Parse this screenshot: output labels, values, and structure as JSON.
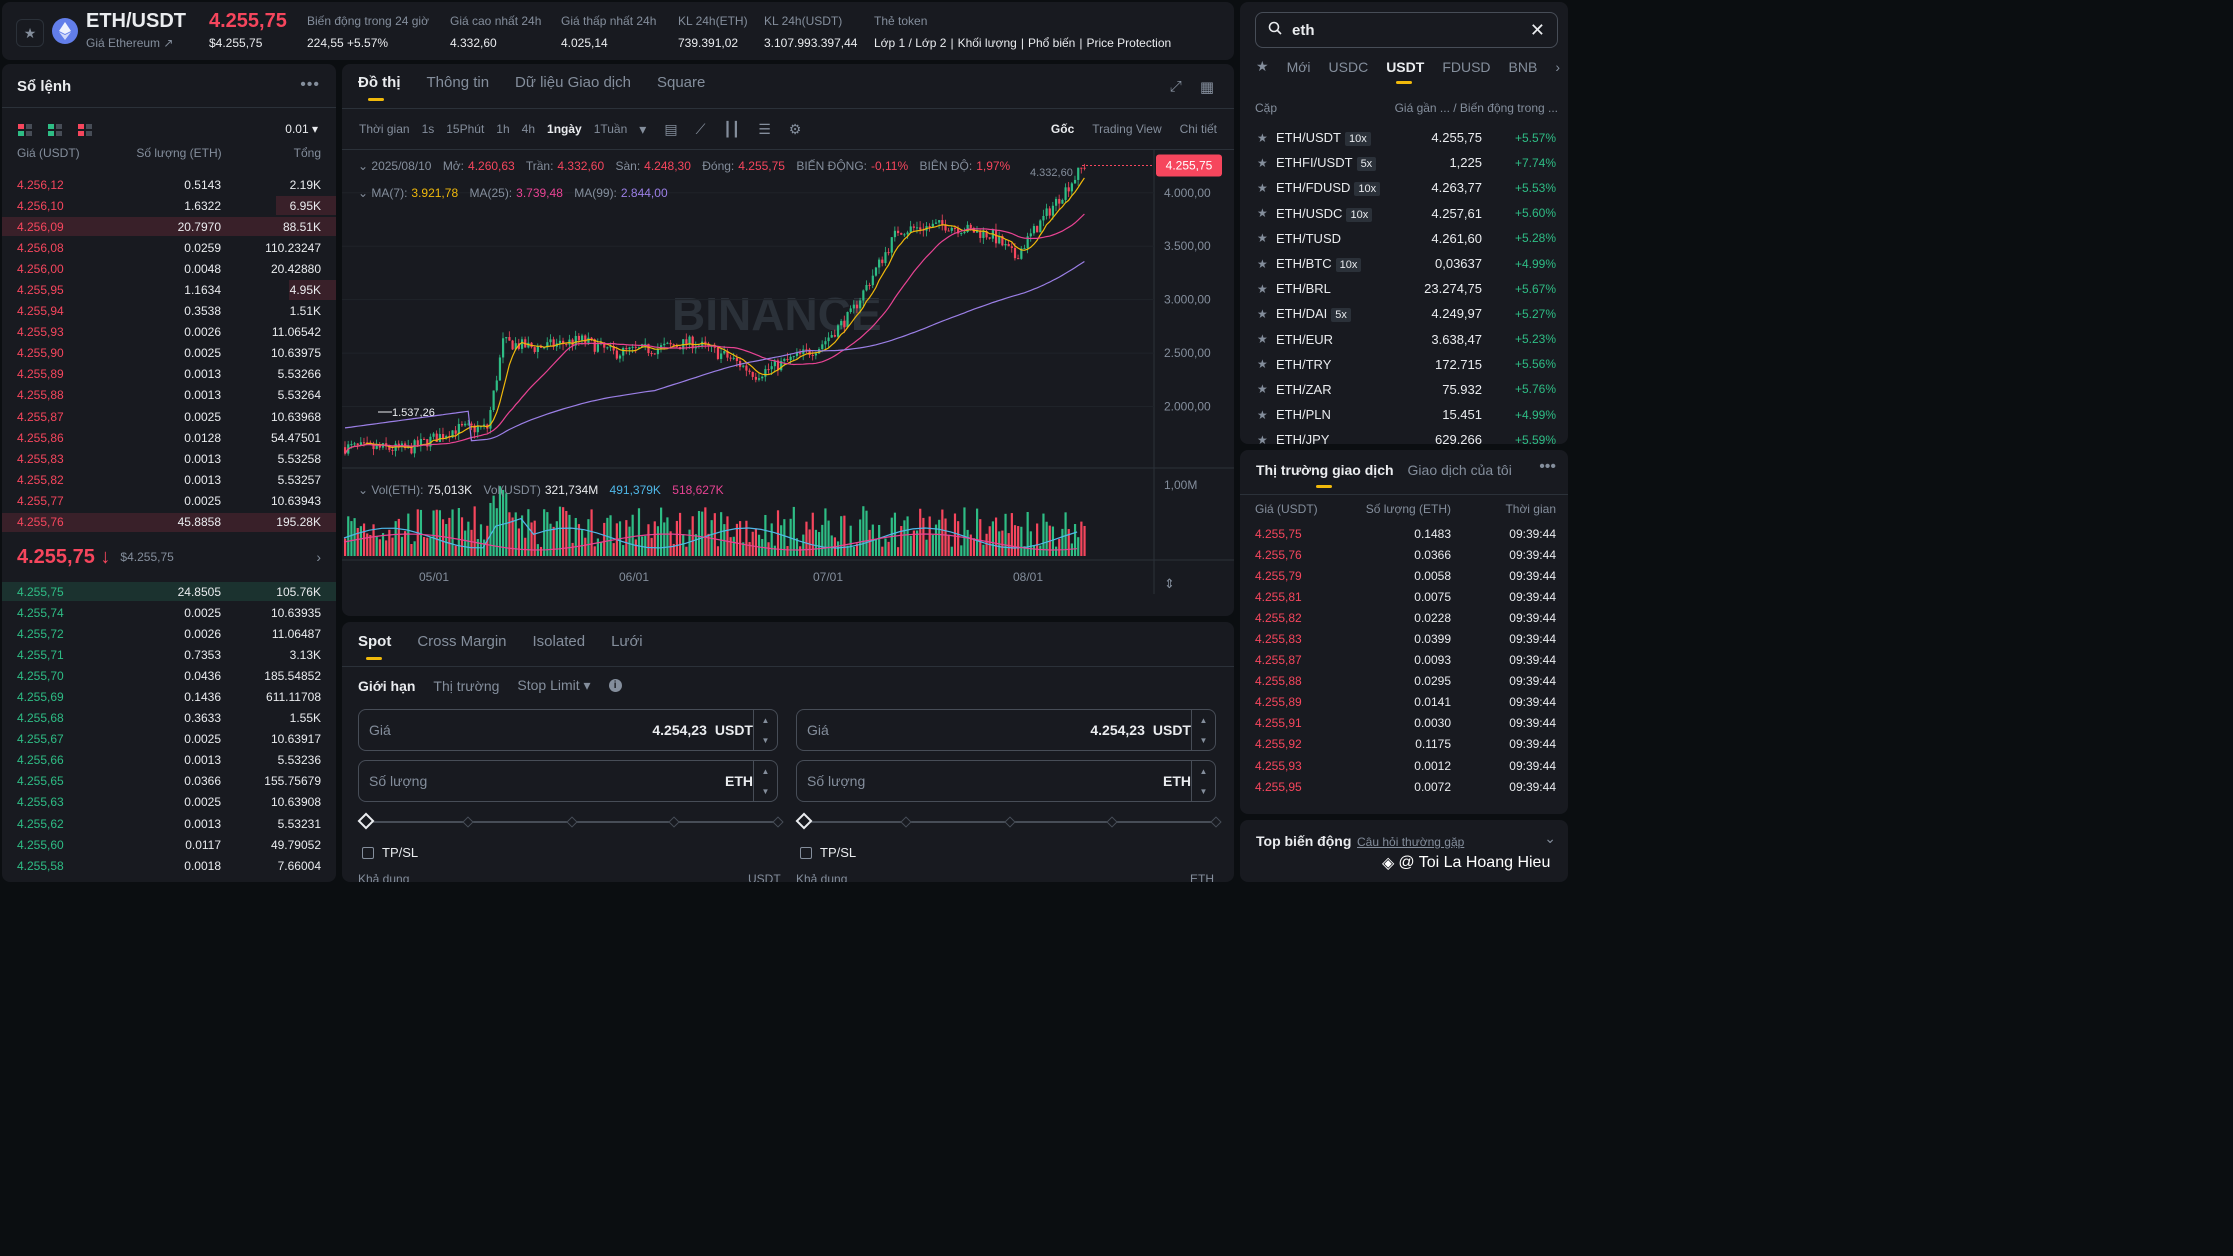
{
  "header": {
    "pair": "ETH/USDT",
    "pair_sub": "Giá Ethereum ↗",
    "last_price": "4.255,75",
    "last_usd": "$4.255,75",
    "stats": [
      {
        "label": "Biến động trong 24 giờ",
        "value": "224,55 +5.57%",
        "color": "green"
      },
      {
        "label": "Giá cao nhất 24h",
        "value": "4.332,60"
      },
      {
        "label": "Giá thấp nhất 24h",
        "value": "4.025,14"
      },
      {
        "label": "KL 24h(ETH)",
        "value": "739.391,02"
      },
      {
        "label": "KL 24h(USDT)",
        "value": "3.107.993.397,44"
      }
    ],
    "token_label": "Thẻ token",
    "token_links": [
      "Lớp 1 / Lớp 2",
      "|",
      "Khối lượng",
      "|",
      "Phổ biến",
      "|",
      "Price Protection"
    ]
  },
  "orderbook": {
    "title": "Sổ lệnh",
    "tick": "0.01 ▾",
    "headers": [
      "Giá (USDT)",
      "Số lượng (ETH)",
      "Tổng"
    ],
    "asks": [
      {
        "p": "4.256,12",
        "q": "0.5143",
        "t": "2.19K",
        "d": 0
      },
      {
        "p": "4.256,10",
        "q": "1.6322",
        "t": "6.95K",
        "d": 0.18
      },
      {
        "p": "4.256,09",
        "q": "20.7970",
        "t": "88.51K",
        "d": 1
      },
      {
        "p": "4.256,08",
        "q": "0.0259",
        "t": "110.23247",
        "d": 0
      },
      {
        "p": "4.256,00",
        "q": "0.0048",
        "t": "20.42880",
        "d": 0
      },
      {
        "p": "4.255,95",
        "q": "1.1634",
        "t": "4.95K",
        "d": 0.14
      },
      {
        "p": "4.255,94",
        "q": "0.3538",
        "t": "1.51K",
        "d": 0
      },
      {
        "p": "4.255,93",
        "q": "0.0026",
        "t": "11.06542",
        "d": 0
      },
      {
        "p": "4.255,90",
        "q": "0.0025",
        "t": "10.63975",
        "d": 0
      },
      {
        "p": "4.255,89",
        "q": "0.0013",
        "t": "5.53266",
        "d": 0
      },
      {
        "p": "4.255,88",
        "q": "0.0013",
        "t": "5.53264",
        "d": 0
      },
      {
        "p": "4.255,87",
        "q": "0.0025",
        "t": "10.63968",
        "d": 0
      },
      {
        "p": "4.255,86",
        "q": "0.0128",
        "t": "54.47501",
        "d": 0
      },
      {
        "p": "4.255,83",
        "q": "0.0013",
        "t": "5.53258",
        "d": 0
      },
      {
        "p": "4.255,82",
        "q": "0.0013",
        "t": "5.53257",
        "d": 0
      },
      {
        "p": "4.255,77",
        "q": "0.0025",
        "t": "10.63943",
        "d": 0
      },
      {
        "p": "4.255,76",
        "q": "45.8858",
        "t": "195.28K",
        "d": 1
      }
    ],
    "mid_price": "4.255,75 ↓",
    "mid_usd": "$4.255,75",
    "bids": [
      {
        "p": "4.255,75",
        "q": "24.8505",
        "t": "105.76K",
        "d": 1
      },
      {
        "p": "4.255,74",
        "q": "0.0025",
        "t": "10.63935",
        "d": 0
      },
      {
        "p": "4.255,72",
        "q": "0.0026",
        "t": "11.06487",
        "d": 0
      },
      {
        "p": "4.255,71",
        "q": "0.7353",
        "t": "3.13K",
        "d": 0
      },
      {
        "p": "4.255,70",
        "q": "0.0436",
        "t": "185.54852",
        "d": 0
      },
      {
        "p": "4.255,69",
        "q": "0.1436",
        "t": "611.11708",
        "d": 0
      },
      {
        "p": "4.255,68",
        "q": "0.3633",
        "t": "1.55K",
        "d": 0
      },
      {
        "p": "4.255,67",
        "q": "0.0025",
        "t": "10.63917",
        "d": 0
      },
      {
        "p": "4.255,66",
        "q": "0.0013",
        "t": "5.53236",
        "d": 0
      },
      {
        "p": "4.255,65",
        "q": "0.0366",
        "t": "155.75679",
        "d": 0
      },
      {
        "p": "4.255,63",
        "q": "0.0025",
        "t": "10.63908",
        "d": 0
      },
      {
        "p": "4.255,62",
        "q": "0.0013",
        "t": "5.53231",
        "d": 0
      },
      {
        "p": "4.255,60",
        "q": "0.0117",
        "t": "49.79052",
        "d": 0
      },
      {
        "p": "4.255,58",
        "q": "0.0018",
        "t": "7.66004",
        "d": 0
      }
    ]
  },
  "chart": {
    "tabs": [
      "Đồ thị",
      "Thông tin",
      "Dữ liệu Giao dịch",
      "Square"
    ],
    "toolbar": {
      "time_label": "Thời gian",
      "intervals": [
        "1s",
        "15Phút",
        "1h",
        "4h",
        "1ngày",
        "1Tuần"
      ],
      "active_interval": "1ngày",
      "views": [
        "Gốc",
        "Trading View",
        "Chi tiết"
      ]
    },
    "legend": {
      "date": "2025/08/10",
      "open_k": "Mở:",
      "open": "4.260,63",
      "high_k": "Trần:",
      "high": "4.332,60",
      "low_k": "Sàn:",
      "low": "4.248,30",
      "close_k": "Đóng:",
      "close": "4.255,75",
      "chg_k": "BIẾN ĐỘNG:",
      "chg": "-0,11%",
      "amp_k": "BIÊN ĐỘ:",
      "amp": "1,97%",
      "ma7_k": "MA(7):",
      "ma7": "3.921,78",
      "ma25_k": "MA(25):",
      "ma25": "3.739,48",
      "ma99_k": "MA(99):",
      "ma99": "2.844,00",
      "vol_eth_k": "Vol(ETH):",
      "vol_eth": "75,013K",
      "vol_usdt_k": "Vol(USDT)",
      "vol_usdt": "321,734M",
      "vol_ma1": "491,379K",
      "vol_ma2": "518,627K"
    },
    "watermark": "BINANCE",
    "price_tag": "4.255,75",
    "high_marker": "4.332,60",
    "low_marker": "1.537,26",
    "colors": {
      "up": "#2ebd85",
      "down": "#f6465d",
      "ma7": "#f0b90b",
      "ma25": "#e84393",
      "ma99": "#9b7fe6",
      "vol_ma1": "#4fb8e8",
      "vol_ma2": "#e84393"
    }
  },
  "chart_data": {
    "type": "candlestick",
    "title": "",
    "y_ticks": [
      "4.000,00",
      "3.500,00",
      "3.000,00",
      "2.500,00",
      "2.000,00"
    ],
    "x_ticks": [
      "05/01",
      "06/01",
      "07/01",
      "08/01"
    ],
    "vol_tick": "1,00M",
    "ylim": [
      1500,
      4400
    ],
    "vol_max": 1500000
  },
  "trade": {
    "tabs": [
      "Spot",
      "Cross Margin",
      "Isolated",
      "Lưới"
    ],
    "order_types": [
      "Giới hạn",
      "Thị trường",
      "Stop Limit ▾"
    ],
    "buy": {
      "price_label": "Giá",
      "price": "4.254,23",
      "price_unit": "USDT",
      "qty_label": "Số lượng",
      "qty_unit": "ETH",
      "tpsl": "TP/SL",
      "avail_label": "Khả dụng",
      "avail_unit": "USDT"
    },
    "sell": {
      "price_label": "Giá",
      "price": "4.254,23",
      "price_unit": "USDT",
      "qty_label": "Số lượng",
      "qty_unit": "ETH",
      "tpsl": "TP/SL",
      "avail_label": "Khả dụng",
      "avail_unit": "ETH"
    }
  },
  "markets": {
    "search_value": "eth",
    "tabs": [
      "Mới",
      "USDC",
      "USDT",
      "FDUSD",
      "BNB"
    ],
    "active_tab": "USDT",
    "headers": [
      "Cặp",
      "Giá gần ... / Biến động trong ..."
    ],
    "rows": [
      {
        "sym": "ETH/USDT",
        "lev": "10x",
        "price": "4.255,75",
        "chg": "+5.57%"
      },
      {
        "sym": "ETHFI/USDT",
        "lev": "5x",
        "price": "1,225",
        "chg": "+7.74%"
      },
      {
        "sym": "ETH/FDUSD",
        "lev": "10x",
        "price": "4.263,77",
        "chg": "+5.53%"
      },
      {
        "sym": "ETH/USDC",
        "lev": "10x",
        "price": "4.257,61",
        "chg": "+5.60%"
      },
      {
        "sym": "ETH/TUSD",
        "lev": "",
        "price": "4.261,60",
        "chg": "+5.28%"
      },
      {
        "sym": "ETH/BTC",
        "lev": "10x",
        "price": "0,03637",
        "chg": "+4.99%"
      },
      {
        "sym": "ETH/BRL",
        "lev": "",
        "price": "23.274,75",
        "chg": "+5.67%"
      },
      {
        "sym": "ETH/DAI",
        "lev": "5x",
        "price": "4.249,97",
        "chg": "+5.27%"
      },
      {
        "sym": "ETH/EUR",
        "lev": "",
        "price": "3.638,47",
        "chg": "+5.23%"
      },
      {
        "sym": "ETH/TRY",
        "lev": "",
        "price": "172.715",
        "chg": "+5.56%"
      },
      {
        "sym": "ETH/ZAR",
        "lev": "",
        "price": "75.932",
        "chg": "+5.76%"
      },
      {
        "sym": "ETH/PLN",
        "lev": "",
        "price": "15.451",
        "chg": "+4.99%"
      },
      {
        "sym": "ETH/JPY",
        "lev": "",
        "price": "629.266",
        "chg": "+5.59%"
      }
    ]
  },
  "trades": {
    "tabs": [
      "Thị trường giao dịch",
      "Giao dịch của tôi"
    ],
    "headers": [
      "Giá (USDT)",
      "Số lượng (ETH)",
      "Thời gian"
    ],
    "rows": [
      {
        "p": "4.255,75",
        "q": "0.1483",
        "t": "09:39:44"
      },
      {
        "p": "4.255,76",
        "q": "0.0366",
        "t": "09:39:44"
      },
      {
        "p": "4.255,79",
        "q": "0.0058",
        "t": "09:39:44"
      },
      {
        "p": "4.255,81",
        "q": "0.0075",
        "t": "09:39:44"
      },
      {
        "p": "4.255,82",
        "q": "0.0228",
        "t": "09:39:44"
      },
      {
        "p": "4.255,83",
        "q": "0.0399",
        "t": "09:39:44"
      },
      {
        "p": "4.255,87",
        "q": "0.0093",
        "t": "09:39:44"
      },
      {
        "p": "4.255,88",
        "q": "0.0295",
        "t": "09:39:44"
      },
      {
        "p": "4.255,89",
        "q": "0.0141",
        "t": "09:39:44"
      },
      {
        "p": "4.255,91",
        "q": "0.0030",
        "t": "09:39:44"
      },
      {
        "p": "4.255,92",
        "q": "0.1175",
        "t": "09:39:44"
      },
      {
        "p": "4.255,93",
        "q": "0.0012",
        "t": "09:39:44"
      },
      {
        "p": "4.255,95",
        "q": "0.0072",
        "t": "09:39:44"
      }
    ]
  },
  "movers": {
    "title": "Top biến động",
    "link": "Câu hỏi thường gặp"
  },
  "watermark_text": "@ Toi La Hoang Hieu"
}
